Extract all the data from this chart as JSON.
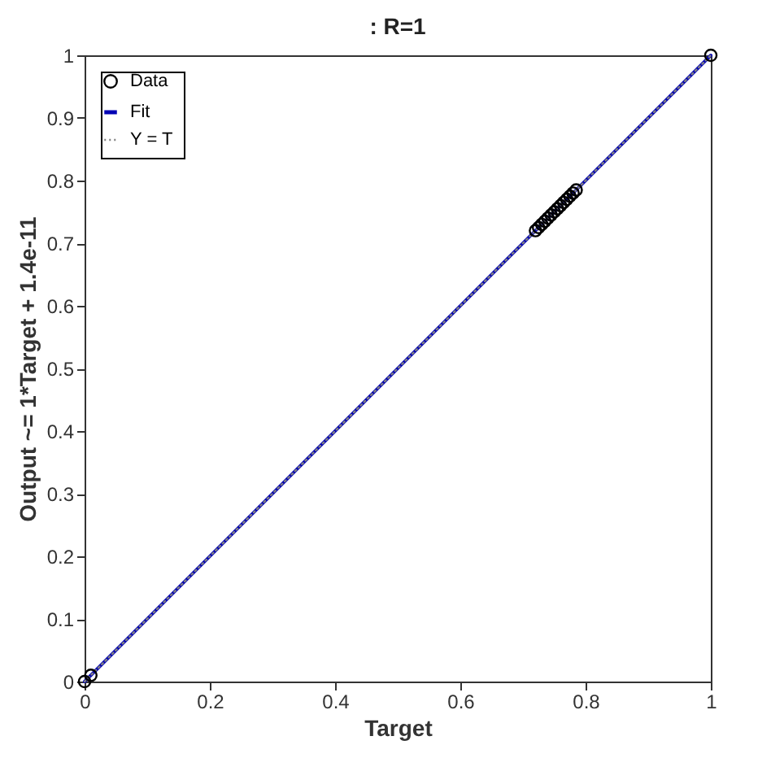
{
  "chart_data": {
    "type": "scatter",
    "title": ": R=1",
    "xlabel": "Target",
    "ylabel": "Output ~= 1*Target + 1.4e-11",
    "xlim": [
      0,
      1
    ],
    "ylim": [
      0,
      1
    ],
    "xticks": [
      0,
      0.2,
      0.4,
      0.6,
      0.8,
      1
    ],
    "yticks": [
      0,
      0.1,
      0.2,
      0.3,
      0.4,
      0.5,
      0.6,
      0.7,
      0.8,
      0.9,
      1
    ],
    "grid": false,
    "legend": "top left",
    "series": [
      {
        "name": "Data",
        "marker": "circle",
        "color": "#000000",
        "x": [
          0,
          0.01,
          0.72,
          0.725,
          0.73,
          0.735,
          0.74,
          0.745,
          0.75,
          0.755,
          0.76,
          0.765,
          0.77,
          0.775,
          0.78,
          0.785,
          1
        ],
        "values": [
          0,
          0.01,
          0.72,
          0.725,
          0.73,
          0.735,
          0.74,
          0.745,
          0.75,
          0.755,
          0.76,
          0.765,
          0.77,
          0.775,
          0.78,
          0.785,
          1
        ]
      },
      {
        "name": "Fit",
        "type": "line",
        "line_style": "solid",
        "color": "#0000b4",
        "x": [
          0,
          1
        ],
        "values": [
          0,
          1
        ]
      },
      {
        "name": "Y = T",
        "type": "line",
        "line_style": "dotted",
        "color": "#808080",
        "x": [
          0,
          1
        ],
        "values": [
          0,
          1
        ]
      }
    ]
  }
}
